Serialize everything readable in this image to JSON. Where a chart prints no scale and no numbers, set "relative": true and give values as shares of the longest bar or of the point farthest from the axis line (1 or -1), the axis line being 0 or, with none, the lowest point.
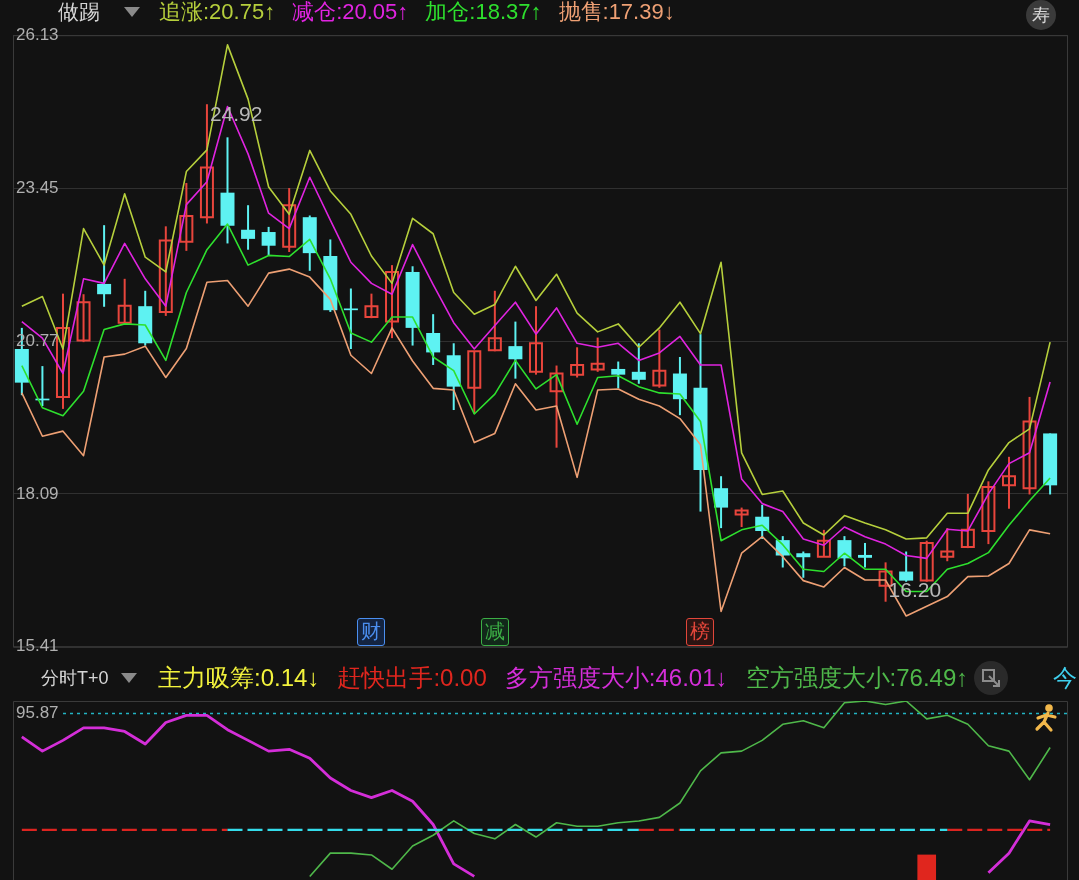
{
  "chart_data": [
    {
      "type": "candlestick",
      "title": "做踢",
      "categories": [
        null,
        null,
        null,
        null,
        null,
        null,
        null,
        null,
        null,
        null,
        null,
        null,
        null,
        null,
        null,
        null,
        null,
        null,
        null,
        null,
        null,
        null,
        null,
        null,
        null,
        null,
        null,
        null,
        null,
        null,
        null,
        null,
        null,
        null,
        null,
        null,
        null,
        null,
        null,
        null,
        null,
        null,
        null,
        null,
        null,
        null,
        null,
        null,
        null,
        null,
        null
      ],
      "ohlc": [
        [
          20.63,
          21.0,
          19.82,
          20.04
        ],
        [
          19.76,
          20.33,
          19.63,
          19.73
        ],
        [
          19.79,
          21.6,
          19.58,
          21.0
        ],
        [
          20.78,
          21.59,
          20.75,
          21.45
        ],
        [
          21.77,
          22.8,
          21.37,
          21.59
        ],
        [
          21.09,
          21.86,
          21.07,
          21.39
        ],
        [
          21.38,
          21.65,
          20.69,
          20.73
        ],
        [
          21.28,
          22.78,
          21.21,
          22.53
        ],
        [
          22.51,
          23.54,
          22.35,
          22.96
        ],
        [
          22.94,
          24.92,
          22.83,
          23.81
        ],
        [
          23.37,
          24.34,
          22.48,
          22.79
        ],
        [
          22.72,
          23.15,
          22.37,
          22.56
        ],
        [
          22.68,
          22.77,
          22.27,
          22.44
        ],
        [
          22.42,
          23.45,
          22.33,
          23.15
        ],
        [
          22.94,
          22.97,
          22.0,
          22.31
        ],
        [
          22.26,
          22.55,
          21.28,
          21.31
        ],
        [
          21.34,
          21.69,
          20.63,
          21.31
        ],
        [
          21.19,
          21.6,
          21.17,
          21.38
        ],
        [
          21.11,
          22.1,
          20.82,
          21.98
        ],
        [
          21.98,
          22.08,
          20.69,
          21.0
        ],
        [
          20.91,
          21.24,
          20.35,
          20.57
        ],
        [
          20.52,
          20.73,
          19.56,
          19.97
        ],
        [
          19.95,
          20.59,
          19.5,
          20.59
        ],
        [
          20.61,
          21.65,
          20.59,
          20.82
        ],
        [
          20.68,
          21.11,
          20.11,
          20.45
        ],
        [
          20.23,
          21.38,
          20.18,
          20.73
        ],
        [
          19.89,
          20.34,
          18.9,
          20.2
        ],
        [
          20.18,
          20.66,
          20.13,
          20.35
        ],
        [
          20.27,
          20.83,
          20.23,
          20.37
        ],
        [
          20.28,
          20.41,
          19.94,
          20.18
        ],
        [
          20.23,
          20.73,
          20.02,
          20.09
        ],
        [
          19.99,
          20.97,
          19.95,
          20.25
        ],
        [
          20.2,
          20.49,
          19.47,
          19.75
        ],
        [
          19.95,
          20.89,
          17.78,
          18.51
        ],
        [
          18.19,
          18.4,
          17.49,
          17.85
        ],
        [
          17.73,
          17.85,
          17.51,
          17.8
        ],
        [
          17.69,
          17.9,
          17.3,
          17.44
        ],
        [
          17.28,
          17.35,
          16.8,
          17.01
        ],
        [
          17.05,
          17.08,
          16.62,
          16.98
        ],
        [
          16.99,
          17.46,
          16.99,
          17.27
        ],
        [
          17.28,
          17.35,
          16.82,
          16.96
        ],
        [
          17.02,
          17.23,
          16.8,
          16.97
        ],
        [
          16.48,
          16.89,
          16.2,
          16.73
        ],
        [
          16.73,
          17.08,
          16.55,
          16.57
        ],
        [
          16.57,
          17.27,
          16.55,
          17.23
        ],
        [
          16.99,
          17.49,
          16.91,
          17.08
        ],
        [
          17.16,
          18.09,
          17.14,
          17.46
        ],
        [
          17.44,
          18.31,
          17.21,
          18.21
        ],
        [
          18.24,
          18.74,
          17.83,
          18.4
        ],
        [
          18.19,
          19.79,
          18.08,
          19.36
        ],
        [
          19.15,
          19.15,
          18.08,
          18.24
        ]
      ],
      "colors": [
        "#5ef2f2",
        "#5ef2f2",
        "#e8453c",
        "#e8453c",
        "#5ef2f2",
        "#e8453c",
        "#5ef2f2",
        "#e8453c",
        "#e8453c",
        "#e8453c",
        "#5ef2f2",
        "#5ef2f2",
        "#5ef2f2",
        "#e8453c",
        "#5ef2f2",
        "#5ef2f2",
        "#5ef2f2",
        "#e8453c",
        "#e8453c",
        "#5ef2f2",
        "#5ef2f2",
        "#5ef2f2",
        "#e8453c",
        "#e8453c",
        "#5ef2f2",
        "#e8453c",
        "#e8453c",
        "#e8453c",
        "#e8453c",
        "#5ef2f2",
        "#5ef2f2",
        "#e8453c",
        "#5ef2f2",
        "#5ef2f2",
        "#5ef2f2",
        "#e8453c",
        "#5ef2f2",
        "#5ef2f2",
        "#5ef2f2",
        "#e8453c",
        "#5ef2f2",
        "#5ef2f2",
        "#e8453c",
        "#5ef2f2",
        "#e8453c",
        "#e8453c",
        "#e8453c",
        "#e8453c",
        "#e8453c",
        "#e8453c",
        "#5ef2f2"
      ],
      "series": [
        {
          "name": "追涨:20.75↑",
          "type": "line",
          "color": "#b6cf3c",
          "values": [
            21.38,
            21.55,
            20.63,
            22.74,
            22.1,
            23.35,
            22.24,
            21.98,
            23.74,
            24.12,
            25.96,
            25.01,
            23.47,
            22.99,
            24.11,
            23.4,
            22.99,
            22.26,
            21.78,
            22.92,
            22.65,
            21.62,
            21.24,
            21.41,
            22.08,
            21.48,
            21.94,
            21.26,
            20.93,
            21.07,
            20.66,
            21.0,
            21.45,
            20.9,
            22.15,
            18.81,
            18.08,
            18.14,
            17.58,
            17.37,
            17.71,
            17.58,
            17.46,
            17.3,
            17.32,
            17.75,
            17.75,
            18.51,
            18.99,
            19.23,
            20.75
          ]
        },
        {
          "name": "减仓:20.05↑",
          "type": "line",
          "color": "#e024e0",
          "values": [
            21.11,
            20.82,
            20.2,
            21.86,
            21.78,
            22.48,
            21.86,
            21.38,
            23.16,
            23.56,
            24.88,
            24.05,
            23.01,
            22.74,
            23.64,
            22.89,
            22.15,
            21.78,
            21.59,
            22.46,
            21.76,
            21.09,
            20.63,
            21.04,
            21.45,
            20.89,
            21.35,
            20.73,
            20.66,
            20.73,
            20.43,
            20.56,
            20.85,
            20.35,
            20.35,
            18.35,
            17.92,
            17.78,
            17.3,
            17.19,
            17.51,
            17.34,
            17.21,
            17.01,
            16.96,
            17.47,
            17.44,
            18.09,
            18.62,
            18.81,
            20.05
          ]
        },
        {
          "name": "加仓:18.37↑",
          "type": "line",
          "color": "#2ee02e",
          "values": [
            20.34,
            19.6,
            19.46,
            19.89,
            20.97,
            21.07,
            21.05,
            20.43,
            21.62,
            22.37,
            22.82,
            22.1,
            22.27,
            22.25,
            22.55,
            21.86,
            20.91,
            20.75,
            21.19,
            21.19,
            20.49,
            20.25,
            19.49,
            19.84,
            20.43,
            19.93,
            20.18,
            19.31,
            20.13,
            20.16,
            19.97,
            19.86,
            19.84,
            19.36,
            17.27,
            17.46,
            17.54,
            17.2,
            16.77,
            16.73,
            17.05,
            16.77,
            16.77,
            16.38,
            16.38,
            16.77,
            16.87,
            17.06,
            17.54,
            17.97,
            18.37
          ]
        },
        {
          "name": "抛售:17.39↓",
          "type": "line",
          "color": "#eea074",
          "values": [
            19.86,
            19.1,
            19.19,
            18.76,
            20.49,
            20.54,
            20.68,
            20.13,
            20.64,
            21.8,
            21.83,
            21.38,
            21.96,
            22.03,
            21.89,
            21.5,
            20.52,
            20.2,
            21.0,
            20.42,
            19.94,
            19.91,
            18.99,
            19.15,
            20.02,
            19.56,
            19.63,
            18.38,
            19.91,
            19.93,
            19.75,
            19.63,
            19.41,
            18.95,
            16.03,
            17.05,
            17.34,
            16.99,
            16.57,
            16.46,
            16.8,
            16.58,
            16.58,
            15.95,
            16.12,
            16.29,
            16.64,
            16.65,
            16.87,
            17.46,
            17.39
          ]
        }
      ],
      "ylim": [
        15.41,
        26.13
      ],
      "yticks": [
        15.41,
        18.09,
        20.77,
        23.45,
        26.13
      ],
      "grid": "y",
      "legend": "top",
      "tick_labels": "y",
      "annotations": [
        "24.92",
        "16.20",
        "财",
        "减",
        "榜",
        "寿"
      ]
    },
    {
      "type": "line",
      "title": "分时T+0",
      "relative": true,
      "categories": [
        null,
        null,
        null,
        null,
        null,
        null,
        null,
        null,
        null,
        null,
        null,
        null,
        null,
        null,
        null,
        null,
        null,
        null,
        null,
        null,
        null,
        null,
        null,
        null,
        null,
        null,
        null,
        null,
        null,
        null,
        null,
        null,
        null,
        null,
        null,
        null,
        null,
        null,
        null,
        null,
        null,
        null,
        null,
        null,
        null,
        null,
        null,
        null,
        null,
        null,
        null
      ],
      "series": [
        {
          "name": "赶快出手:0.00",
          "type": "bar",
          "color": "#e0261e",
          "values": [
            null,
            null,
            null,
            null,
            null,
            null,
            null,
            null,
            null,
            null,
            null,
            null,
            null,
            null,
            null,
            null,
            null,
            null,
            null,
            null,
            null,
            null,
            null,
            null,
            null,
            null,
            null,
            null,
            null,
            null,
            null,
            null,
            null,
            null,
            null,
            null,
            null,
            null,
            null,
            null,
            null,
            null,
            null,
            null,
            0.14,
            null,
            null,
            null,
            null,
            null,
            null
          ]
        },
        {
          "name": "多方强度大小:46.01↓",
          "color": "#d42ed8",
          "values": [
            0.8,
            0.72,
            0.78,
            0.85,
            0.85,
            0.83,
            0.76,
            0.88,
            0.92,
            0.92,
            0.84,
            0.78,
            0.72,
            0.73,
            0.68,
            0.57,
            0.5,
            0.46,
            0.5,
            0.44,
            0.31,
            0.09,
            0.02,
            null,
            null,
            null,
            null,
            null,
            null,
            null,
            null,
            null,
            null,
            null,
            null,
            null,
            null,
            null,
            null,
            null,
            null,
            null,
            null,
            null,
            null,
            null,
            null,
            0.04,
            0.15,
            0.33,
            0.31
          ]
        },
        {
          "name": "空方强度大小:76.49↑",
          "color": "#4fb84a",
          "values": [
            null,
            null,
            null,
            null,
            null,
            null,
            null,
            null,
            null,
            null,
            null,
            null,
            null,
            null,
            0.02,
            0.15,
            0.15,
            0.14,
            0.06,
            0.19,
            0.25,
            0.33,
            0.26,
            0.23,
            0.31,
            0.24,
            0.32,
            0.3,
            0.3,
            0.32,
            0.33,
            0.35,
            0.43,
            0.61,
            0.71,
            0.72,
            0.78,
            0.87,
            0.89,
            0.85,
            0.99,
            1.0,
            0.98,
            1.0,
            0.9,
            0.92,
            0.87,
            0.75,
            0.72,
            0.56,
            0.74
          ]
        },
        {
          "color": "#dc2420",
          "line_style": "dashed",
          "values": [
            0.28,
            0.28,
            0.28,
            0.28,
            0.28,
            0.28,
            0.28,
            0.28,
            0.28,
            0.28,
            0.28,
            null,
            null,
            null,
            null,
            null,
            null,
            null,
            null,
            null,
            null,
            null,
            null,
            null,
            null,
            null,
            null,
            null,
            null,
            null,
            0.28,
            0.28,
            0.28,
            null,
            null,
            null,
            null,
            null,
            null,
            null,
            null,
            null,
            null,
            null,
            null,
            0.28,
            0.28,
            0.28,
            0.28,
            0.28,
            0.28
          ]
        },
        {
          "color": "#34dcea",
          "line_style": "dashed",
          "values": [
            null,
            null,
            null,
            null,
            null,
            null,
            null,
            null,
            null,
            null,
            0.28,
            0.28,
            0.28,
            0.28,
            0.28,
            0.28,
            0.28,
            0.28,
            0.28,
            0.28,
            0.28,
            0.28,
            0.28,
            0.28,
            0.28,
            0.28,
            0.28,
            0.28,
            0.28,
            0.28,
            0.28,
            null,
            0.28,
            0.28,
            0.28,
            0.28,
            0.28,
            0.28,
            0.28,
            0.28,
            0.28,
            0.28,
            0.28,
            0.28,
            0.28,
            0.28,
            null,
            null,
            null,
            null,
            null
          ]
        }
      ],
      "ref_lines": [
        {
          "axis": "y",
          "value": 0.93,
          "color": "#22b4c4",
          "line_style": "dotted"
        }
      ],
      "legend": "top",
      "annotations": [
        "主力吸筹:0.14↓",
        "95.87",
        "今"
      ]
    }
  ]
}
